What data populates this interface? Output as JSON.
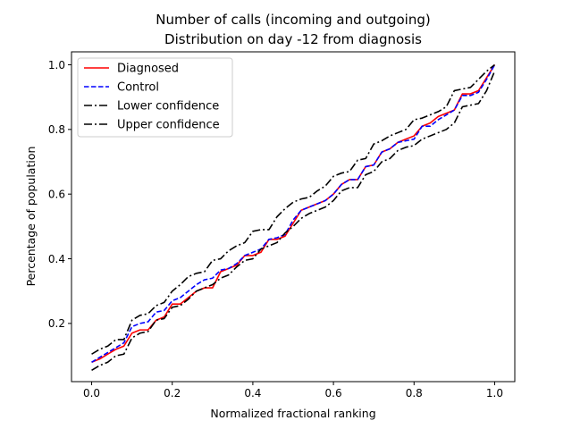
{
  "chart_data": {
    "type": "line",
    "title": "Number of calls (incoming and outgoing)",
    "subtitle": "Distribution on day -12 from diagnosis",
    "xlabel": "Normalized fractional ranking",
    "ylabel": "Percentage of population",
    "xlim": [
      -0.05,
      1.05
    ],
    "ylim": [
      0.02,
      1.04
    ],
    "xticks": [
      0.0,
      0.2,
      0.4,
      0.6,
      0.8,
      1.0
    ],
    "yticks": [
      0.2,
      0.4,
      0.6,
      0.8,
      1.0
    ],
    "xtick_labels": [
      "0.0",
      "0.2",
      "0.4",
      "0.6",
      "0.8",
      "1.0"
    ],
    "ytick_labels": [
      "0.2",
      "0.4",
      "0.6",
      "0.8",
      "1.0"
    ],
    "grid": false,
    "legend_position": "top-left",
    "series": [
      {
        "name": "Diagnosed",
        "color": "#ff0000",
        "style": "solid",
        "x": [
          0.0,
          0.02,
          0.04,
          0.06,
          0.08,
          0.1,
          0.12,
          0.14,
          0.16,
          0.18,
          0.2,
          0.22,
          0.24,
          0.26,
          0.28,
          0.3,
          0.32,
          0.34,
          0.36,
          0.38,
          0.4,
          0.42,
          0.44,
          0.46,
          0.48,
          0.5,
          0.52,
          0.54,
          0.56,
          0.58,
          0.6,
          0.62,
          0.64,
          0.66,
          0.68,
          0.7,
          0.72,
          0.74,
          0.76,
          0.78,
          0.8,
          0.82,
          0.84,
          0.86,
          0.88,
          0.9,
          0.92,
          0.94,
          0.96,
          0.98,
          1.0
        ],
        "y": [
          0.08,
          0.09,
          0.105,
          0.12,
          0.13,
          0.17,
          0.18,
          0.18,
          0.21,
          0.22,
          0.26,
          0.26,
          0.28,
          0.3,
          0.31,
          0.31,
          0.36,
          0.37,
          0.38,
          0.41,
          0.41,
          0.42,
          0.46,
          0.46,
          0.47,
          0.51,
          0.55,
          0.56,
          0.57,
          0.58,
          0.6,
          0.63,
          0.645,
          0.645,
          0.685,
          0.69,
          0.73,
          0.74,
          0.76,
          0.77,
          0.78,
          0.81,
          0.82,
          0.84,
          0.85,
          0.86,
          0.91,
          0.91,
          0.92,
          0.96,
          1.0
        ]
      },
      {
        "name": "Control",
        "color": "#0000ff",
        "style": "dashed",
        "x": [
          0.0,
          0.02,
          0.04,
          0.06,
          0.08,
          0.1,
          0.12,
          0.14,
          0.16,
          0.18,
          0.2,
          0.22,
          0.24,
          0.26,
          0.28,
          0.3,
          0.32,
          0.34,
          0.36,
          0.38,
          0.4,
          0.42,
          0.44,
          0.46,
          0.48,
          0.5,
          0.52,
          0.54,
          0.56,
          0.58,
          0.6,
          0.62,
          0.64,
          0.66,
          0.68,
          0.7,
          0.72,
          0.74,
          0.76,
          0.78,
          0.8,
          0.82,
          0.84,
          0.86,
          0.88,
          0.9,
          0.92,
          0.94,
          0.96,
          0.98,
          1.0
        ],
        "y": [
          0.08,
          0.095,
          0.11,
          0.125,
          0.14,
          0.19,
          0.2,
          0.205,
          0.235,
          0.24,
          0.27,
          0.28,
          0.3,
          0.32,
          0.335,
          0.34,
          0.365,
          0.37,
          0.385,
          0.41,
          0.42,
          0.43,
          0.46,
          0.465,
          0.475,
          0.52,
          0.55,
          0.56,
          0.57,
          0.58,
          0.6,
          0.63,
          0.645,
          0.645,
          0.685,
          0.69,
          0.73,
          0.74,
          0.76,
          0.765,
          0.77,
          0.81,
          0.81,
          0.83,
          0.845,
          0.86,
          0.905,
          0.905,
          0.915,
          0.955,
          1.0
        ]
      },
      {
        "name": "Lower confidence",
        "color": "#000000",
        "style": "dashdot",
        "x": [
          0.0,
          0.02,
          0.04,
          0.06,
          0.08,
          0.1,
          0.12,
          0.14,
          0.16,
          0.18,
          0.2,
          0.22,
          0.24,
          0.26,
          0.28,
          0.3,
          0.32,
          0.34,
          0.36,
          0.38,
          0.4,
          0.42,
          0.44,
          0.46,
          0.48,
          0.5,
          0.52,
          0.54,
          0.56,
          0.58,
          0.6,
          0.62,
          0.64,
          0.66,
          0.68,
          0.7,
          0.72,
          0.74,
          0.76,
          0.78,
          0.8,
          0.82,
          0.84,
          0.86,
          0.88,
          0.9,
          0.92,
          0.94,
          0.96,
          0.98,
          1.0
        ],
        "y": [
          0.055,
          0.07,
          0.08,
          0.1,
          0.105,
          0.155,
          0.17,
          0.175,
          0.21,
          0.215,
          0.25,
          0.255,
          0.275,
          0.3,
          0.31,
          0.32,
          0.34,
          0.35,
          0.375,
          0.395,
          0.4,
          0.43,
          0.44,
          0.45,
          0.48,
          0.5,
          0.525,
          0.54,
          0.55,
          0.56,
          0.58,
          0.61,
          0.62,
          0.62,
          0.66,
          0.67,
          0.7,
          0.71,
          0.735,
          0.745,
          0.75,
          0.77,
          0.78,
          0.79,
          0.8,
          0.82,
          0.87,
          0.875,
          0.88,
          0.92,
          0.98
        ]
      },
      {
        "name": "Upper confidence",
        "color": "#000000",
        "style": "dashdot",
        "x": [
          0.0,
          0.02,
          0.04,
          0.06,
          0.08,
          0.1,
          0.12,
          0.14,
          0.16,
          0.18,
          0.2,
          0.22,
          0.24,
          0.26,
          0.28,
          0.3,
          0.32,
          0.34,
          0.36,
          0.38,
          0.4,
          0.42,
          0.44,
          0.46,
          0.48,
          0.5,
          0.52,
          0.54,
          0.56,
          0.58,
          0.6,
          0.62,
          0.64,
          0.66,
          0.68,
          0.7,
          0.72,
          0.74,
          0.76,
          0.78,
          0.8,
          0.82,
          0.84,
          0.86,
          0.88,
          0.9,
          0.92,
          0.94,
          0.96,
          0.98,
          1.0
        ],
        "y": [
          0.105,
          0.12,
          0.13,
          0.15,
          0.15,
          0.21,
          0.225,
          0.23,
          0.255,
          0.265,
          0.3,
          0.32,
          0.345,
          0.355,
          0.36,
          0.395,
          0.4,
          0.425,
          0.44,
          0.45,
          0.485,
          0.49,
          0.49,
          0.53,
          0.555,
          0.575,
          0.585,
          0.59,
          0.61,
          0.625,
          0.655,
          0.665,
          0.67,
          0.705,
          0.71,
          0.755,
          0.765,
          0.78,
          0.79,
          0.8,
          0.83,
          0.835,
          0.845,
          0.855,
          0.87,
          0.92,
          0.925,
          0.93,
          0.955,
          0.98,
          1.0
        ]
      }
    ]
  }
}
